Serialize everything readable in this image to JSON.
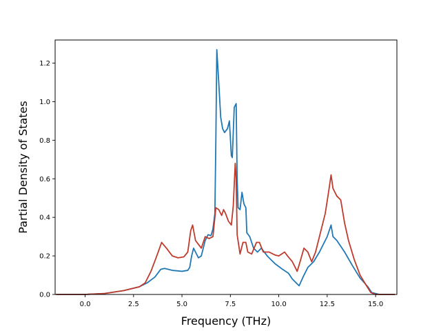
{
  "chart_data": {
    "type": "line",
    "title": "",
    "xlabel": "Frequency (THz)",
    "ylabel": "Partial Density of States",
    "xlim": [
      -1.55,
      16.1
    ],
    "ylim": [
      0,
      1.32
    ],
    "xticks": [
      0.0,
      2.5,
      5.0,
      7.5,
      10.0,
      12.5,
      15.0
    ],
    "xtick_labels": [
      "0.0",
      "2.5",
      "5.0",
      "7.5",
      "10.0",
      "12.5",
      "15.0"
    ],
    "yticks": [
      0.0,
      0.2,
      0.4,
      0.6,
      0.8,
      1.0,
      1.2
    ],
    "ytick_labels": [
      "0.0",
      "0.2",
      "0.4",
      "0.6",
      "0.8",
      "1.0",
      "1.2"
    ],
    "grid": false,
    "legend": "none",
    "series": [
      {
        "color": "#1f77b4",
        "points": [
          [
            -1.5,
            0
          ],
          [
            0,
            0
          ],
          [
            1,
            0.005
          ],
          [
            2,
            0.02
          ],
          [
            2.8,
            0.04
          ],
          [
            3.2,
            0.06
          ],
          [
            3.6,
            0.09
          ],
          [
            3.9,
            0.13
          ],
          [
            4.1,
            0.135
          ],
          [
            4.5,
            0.125
          ],
          [
            5.0,
            0.12
          ],
          [
            5.3,
            0.125
          ],
          [
            5.4,
            0.14
          ],
          [
            5.5,
            0.2
          ],
          [
            5.6,
            0.24
          ],
          [
            5.7,
            0.22
          ],
          [
            5.85,
            0.19
          ],
          [
            6.0,
            0.2
          ],
          [
            6.2,
            0.28
          ],
          [
            6.35,
            0.31
          ],
          [
            6.5,
            0.305
          ],
          [
            6.6,
            0.34
          ],
          [
            6.7,
            0.42
          ],
          [
            6.75,
            0.8
          ],
          [
            6.8,
            1.27
          ],
          [
            6.9,
            1.1
          ],
          [
            7.0,
            0.92
          ],
          [
            7.1,
            0.86
          ],
          [
            7.2,
            0.84
          ],
          [
            7.35,
            0.86
          ],
          [
            7.45,
            0.9
          ],
          [
            7.55,
            0.72
          ],
          [
            7.6,
            0.71
          ],
          [
            7.7,
            0.97
          ],
          [
            7.8,
            0.99
          ],
          [
            7.85,
            0.6
          ],
          [
            7.9,
            0.45
          ],
          [
            8.0,
            0.44
          ],
          [
            8.1,
            0.53
          ],
          [
            8.2,
            0.47
          ],
          [
            8.3,
            0.45
          ],
          [
            8.35,
            0.32
          ],
          [
            8.5,
            0.3
          ],
          [
            8.7,
            0.24
          ],
          [
            8.9,
            0.22
          ],
          [
            9.1,
            0.24
          ],
          [
            9.4,
            0.2
          ],
          [
            9.8,
            0.16
          ],
          [
            10.2,
            0.13
          ],
          [
            10.5,
            0.11
          ],
          [
            10.7,
            0.08
          ],
          [
            10.9,
            0.06
          ],
          [
            11.05,
            0.045
          ],
          [
            11.3,
            0.1
          ],
          [
            11.5,
            0.14
          ],
          [
            11.8,
            0.17
          ],
          [
            12.1,
            0.22
          ],
          [
            12.5,
            0.3
          ],
          [
            12.7,
            0.36
          ],
          [
            12.8,
            0.3
          ],
          [
            13.0,
            0.28
          ],
          [
            13.4,
            0.22
          ],
          [
            13.8,
            0.15
          ],
          [
            14.2,
            0.085
          ],
          [
            14.6,
            0.04
          ],
          [
            14.8,
            0.01
          ],
          [
            15.2,
            0
          ],
          [
            16,
            0
          ]
        ]
      },
      {
        "color": "#c0392b",
        "points": [
          [
            -1.5,
            0
          ],
          [
            0,
            0
          ],
          [
            1,
            0.005
          ],
          [
            2,
            0.02
          ],
          [
            2.8,
            0.04
          ],
          [
            3.1,
            0.06
          ],
          [
            3.4,
            0.12
          ],
          [
            3.7,
            0.2
          ],
          [
            3.95,
            0.27
          ],
          [
            4.2,
            0.24
          ],
          [
            4.5,
            0.2
          ],
          [
            4.8,
            0.19
          ],
          [
            5.1,
            0.195
          ],
          [
            5.3,
            0.22
          ],
          [
            5.45,
            0.33
          ],
          [
            5.55,
            0.36
          ],
          [
            5.7,
            0.28
          ],
          [
            5.85,
            0.26
          ],
          [
            6.0,
            0.24
          ],
          [
            6.2,
            0.3
          ],
          [
            6.4,
            0.29
          ],
          [
            6.6,
            0.3
          ],
          [
            6.75,
            0.45
          ],
          [
            6.9,
            0.44
          ],
          [
            7.05,
            0.41
          ],
          [
            7.15,
            0.44
          ],
          [
            7.25,
            0.42
          ],
          [
            7.4,
            0.38
          ],
          [
            7.55,
            0.36
          ],
          [
            7.65,
            0.46
          ],
          [
            7.75,
            0.68
          ],
          [
            7.8,
            0.6
          ],
          [
            7.85,
            0.31
          ],
          [
            8.0,
            0.21
          ],
          [
            8.15,
            0.27
          ],
          [
            8.3,
            0.27
          ],
          [
            8.4,
            0.22
          ],
          [
            8.6,
            0.21
          ],
          [
            8.85,
            0.27
          ],
          [
            9.0,
            0.27
          ],
          [
            9.2,
            0.22
          ],
          [
            9.5,
            0.22
          ],
          [
            9.8,
            0.205
          ],
          [
            10.0,
            0.2
          ],
          [
            10.3,
            0.22
          ],
          [
            10.45,
            0.2
          ],
          [
            10.7,
            0.17
          ],
          [
            10.95,
            0.12
          ],
          [
            11.1,
            0.17
          ],
          [
            11.3,
            0.24
          ],
          [
            11.5,
            0.22
          ],
          [
            11.7,
            0.17
          ],
          [
            11.9,
            0.22
          ],
          [
            12.1,
            0.3
          ],
          [
            12.4,
            0.42
          ],
          [
            12.6,
            0.55
          ],
          [
            12.7,
            0.62
          ],
          [
            12.8,
            0.55
          ],
          [
            13.0,
            0.51
          ],
          [
            13.2,
            0.49
          ],
          [
            13.4,
            0.37
          ],
          [
            13.6,
            0.28
          ],
          [
            13.9,
            0.18
          ],
          [
            14.2,
            0.1
          ],
          [
            14.5,
            0.05
          ],
          [
            14.75,
            0.01
          ],
          [
            15,
            0
          ],
          [
            16,
            0
          ]
        ]
      }
    ]
  }
}
